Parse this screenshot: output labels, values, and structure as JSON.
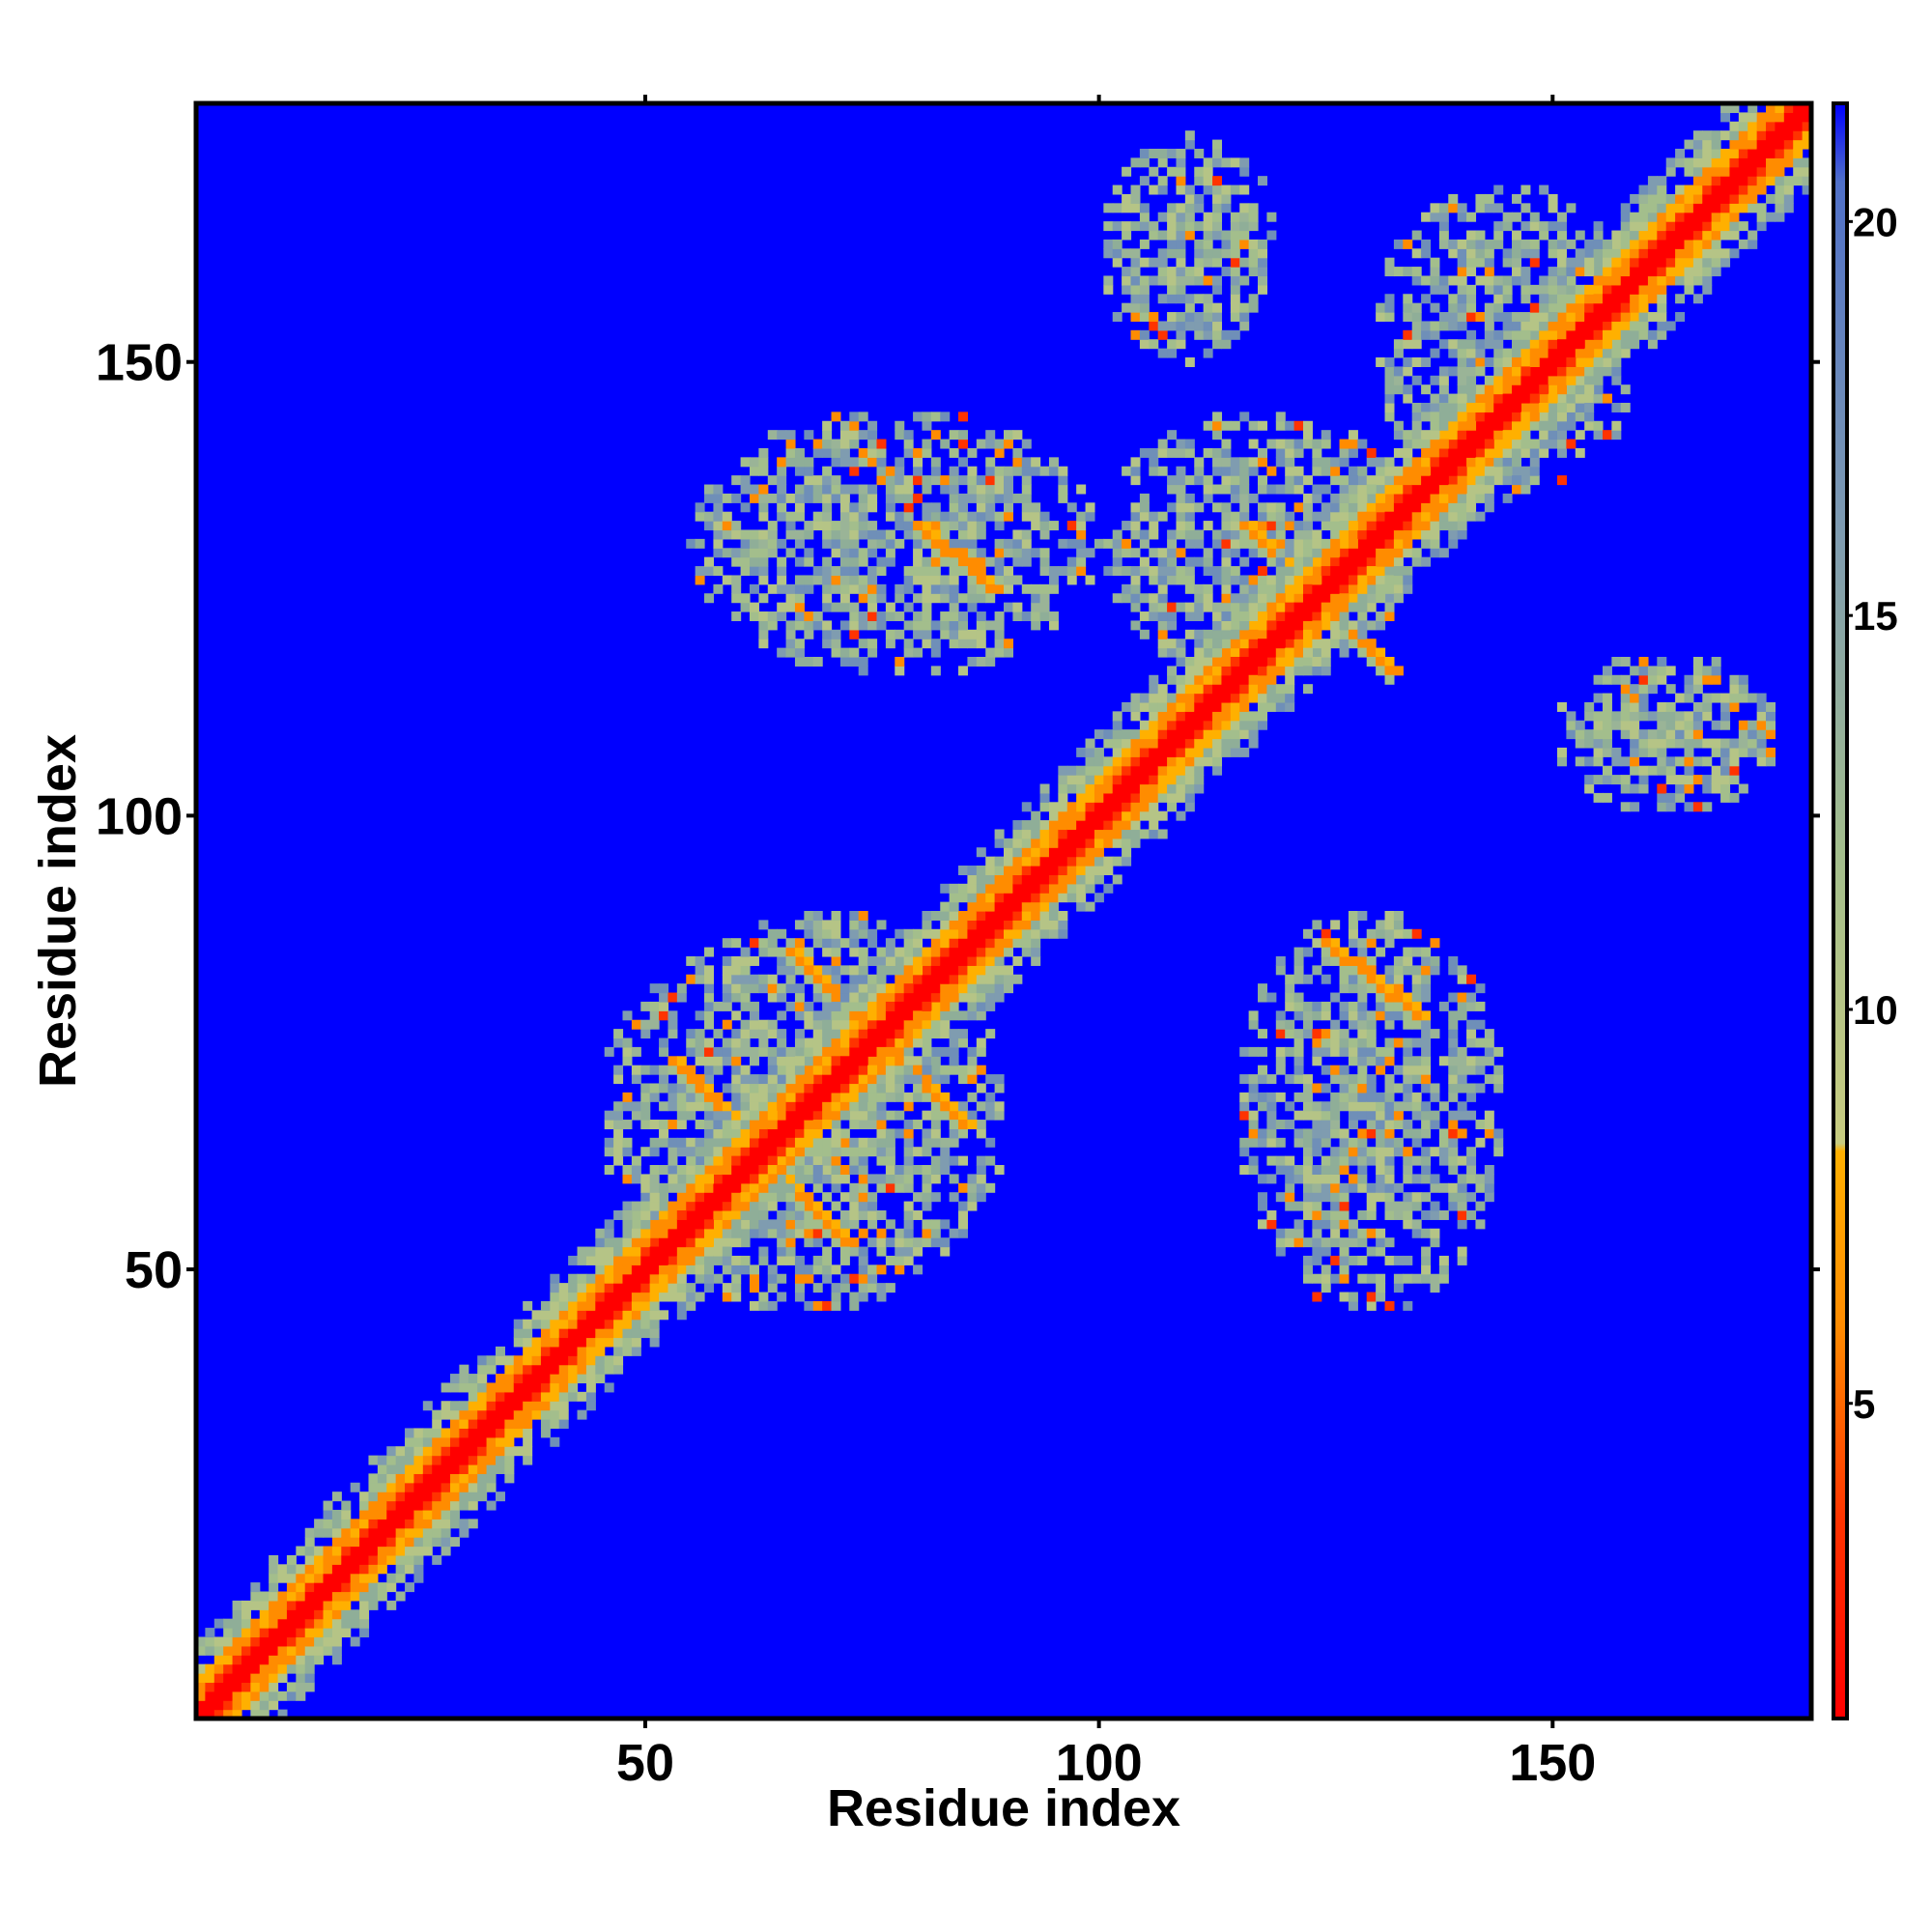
{
  "chart_data": {
    "type": "heatmap",
    "title": "",
    "xlabel": "Residue index",
    "ylabel": "Residue index",
    "xlim": [
      1,
      178
    ],
    "ylim": [
      1,
      178
    ],
    "x_ticks": [
      50,
      100,
      150
    ],
    "y_ticks": [
      50,
      100,
      150
    ],
    "colorbar": {
      "ticks": [
        5,
        10,
        15,
        20
      ],
      "range": [
        1,
        21.5
      ],
      "stops": [
        {
          "value": 1,
          "color": "#ff0000"
        },
        {
          "value": 3.5,
          "color": "#ff3300"
        },
        {
          "value": 6,
          "color": "#ff8c00"
        },
        {
          "value": 8.2,
          "color": "#ffb000"
        },
        {
          "value": 8.3,
          "color": "#c8cc80"
        },
        {
          "value": 12,
          "color": "#a3be8c"
        },
        {
          "value": 16,
          "color": "#7f9cb0"
        },
        {
          "value": 20.5,
          "color": "#5070c8"
        },
        {
          "value": 21.5,
          "color": "#0000ff"
        }
      ]
    },
    "background_color": "#0000ff",
    "diagonal_color": "#ff0000",
    "near_diagonal_color": "#ff8c00",
    "contact_color": "#a3be8c",
    "features": [
      {
        "kind": "diagonal-band",
        "from": 1,
        "to": 178,
        "width": 6
      },
      {
        "kind": "cluster",
        "x": [
          55,
          100
        ],
        "y": [
          115,
          145
        ]
      },
      {
        "kind": "cluster",
        "x": [
          100,
          135
        ],
        "y": [
          115,
          145
        ]
      },
      {
        "kind": "cluster",
        "x": [
          45,
          90
        ],
        "y": [
          45,
          90
        ]
      },
      {
        "kind": "cluster",
        "x": [
          115,
          145
        ],
        "y": [
          45,
          90
        ]
      },
      {
        "kind": "cluster",
        "x": [
          100,
          120
        ],
        "y": [
          150,
          175
        ]
      },
      {
        "kind": "cluster",
        "x": [
          150,
          175
        ],
        "y": [
          100,
          118
        ]
      },
      {
        "kind": "cluster",
        "x": [
          130,
          160
        ],
        "y": [
          135,
          170
        ]
      },
      {
        "kind": "anti-diagonal",
        "from": [
          53,
          73
        ],
        "to": [
          72,
          53
        ]
      },
      {
        "kind": "anti-diagonal",
        "from": [
          66,
          85
        ],
        "to": [
          85,
          66
        ]
      },
      {
        "kind": "anti-diagonal",
        "from": [
          80,
          132
        ],
        "to": [
          88,
          125
        ]
      },
      {
        "kind": "anti-diagonal",
        "from": [
          116,
          132
        ],
        "to": [
          132,
          116
        ]
      },
      {
        "kind": "anti-diagonal",
        "from": [
          125,
          86
        ],
        "to": [
          135,
          78
        ]
      }
    ]
  }
}
